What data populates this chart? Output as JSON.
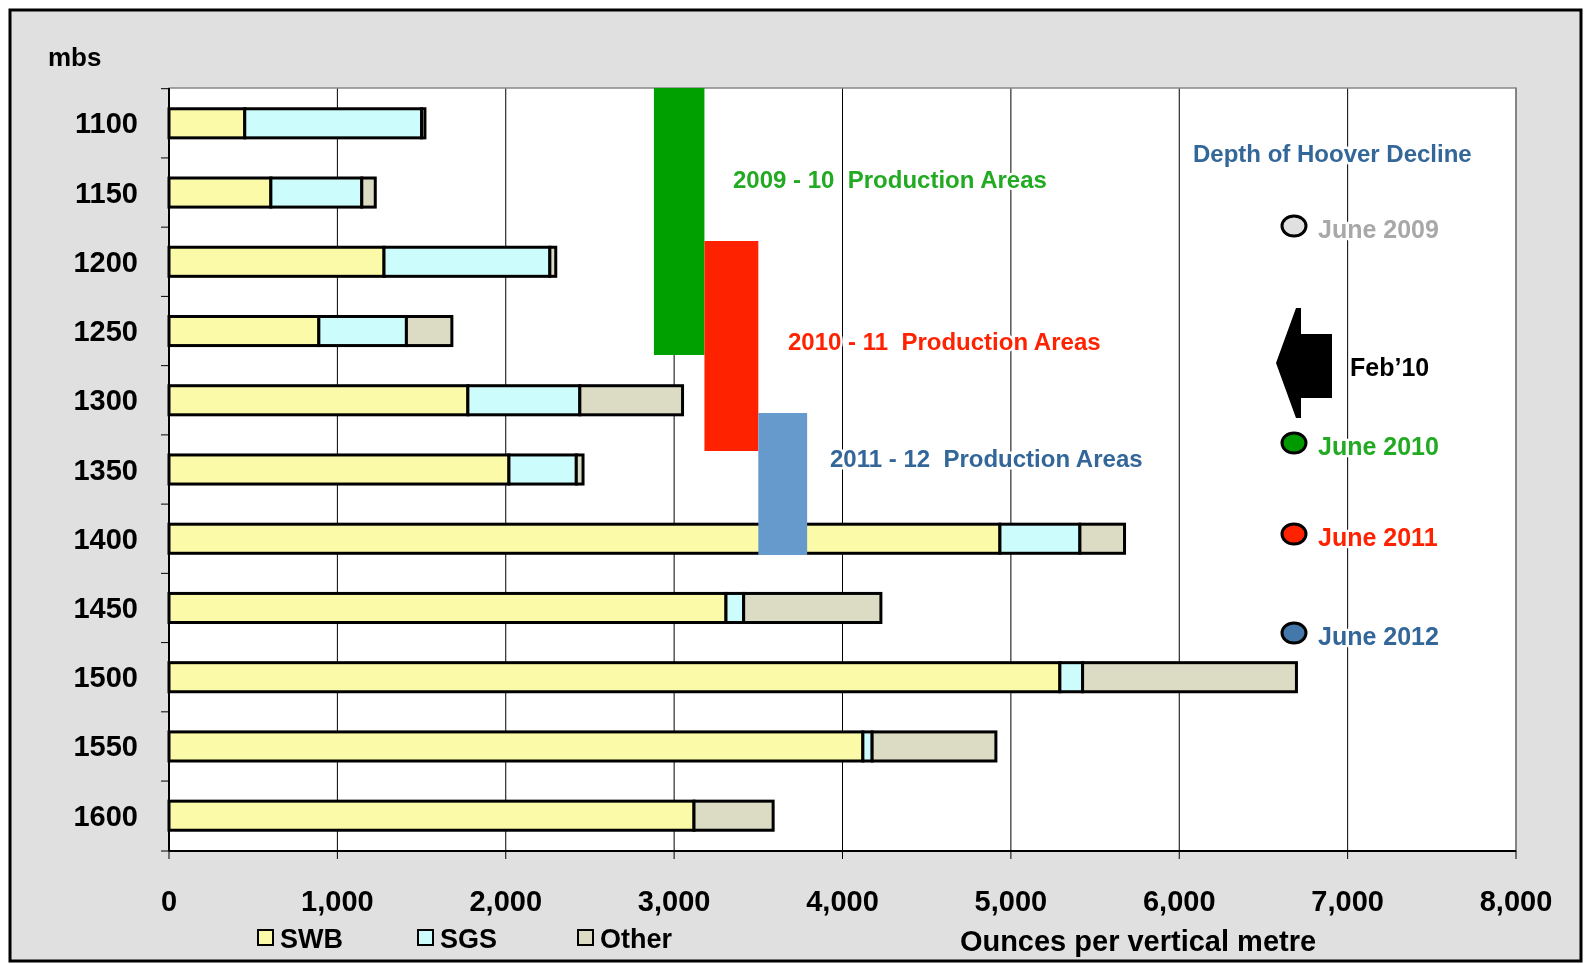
{
  "chart_data": {
    "type": "bar",
    "orientation": "horizontal",
    "stacked": true,
    "ylabel": "mbs",
    "xlabel": "Ounces per vertical metre",
    "categories": [
      "1100",
      "1150",
      "1200",
      "1250",
      "1300",
      "1350",
      "1400",
      "1450",
      "1500",
      "1550",
      "1600"
    ],
    "series": [
      {
        "name": "SWB",
        "color": "#fafaa8",
        "values": [
          450,
          605,
          1277,
          890,
          1775,
          2019,
          4935,
          3308,
          5291,
          4121,
          3118
        ]
      },
      {
        "name": "SGS",
        "color": "#ccfcfc",
        "values": [
          1050,
          540,
          985,
          520,
          665,
          400,
          475,
          105,
          135,
          55,
          0
        ]
      },
      {
        "name": "Other",
        "color": "#dcdcc4",
        "values": [
          20,
          80,
          35,
          270,
          610,
          40,
          265,
          815,
          1270,
          735,
          470
        ]
      }
    ],
    "xlim": [
      0,
      8000
    ],
    "xticks": [
      {
        "value": 0,
        "label": "0"
      },
      {
        "value": 1000,
        "label": "1,000"
      },
      {
        "value": 2000,
        "label": "2,000"
      },
      {
        "value": 3000,
        "label": "3,000"
      },
      {
        "value": 4000,
        "label": "4,000"
      },
      {
        "value": 5000,
        "label": "5,000"
      },
      {
        "value": 6000,
        "label": "6,000"
      },
      {
        "value": 7000,
        "label": "7,000"
      },
      {
        "value": 8000,
        "label": "8,000"
      }
    ],
    "grid": "x",
    "legend": "bottom left",
    "bands": [
      {
        "axis": "x",
        "from": 2880,
        "to": 3180,
        "label": "2009 - 10  Production Areas",
        "color": "#00a000"
      },
      {
        "axis": "x",
        "from": 3180,
        "to": 3500,
        "label": "2010 - 11  Production Areas",
        "color": "#ff2200"
      },
      {
        "axis": "x",
        "from": 3500,
        "to": 3790,
        "label": "2011 - 12  Production Areas",
        "color": "#6699cc"
      }
    ],
    "annotations": [
      "Depth of Hoover Decline",
      "June 2009",
      "Feb’10",
      "June 2010",
      "June 2011",
      "June 2012"
    ]
  }
}
